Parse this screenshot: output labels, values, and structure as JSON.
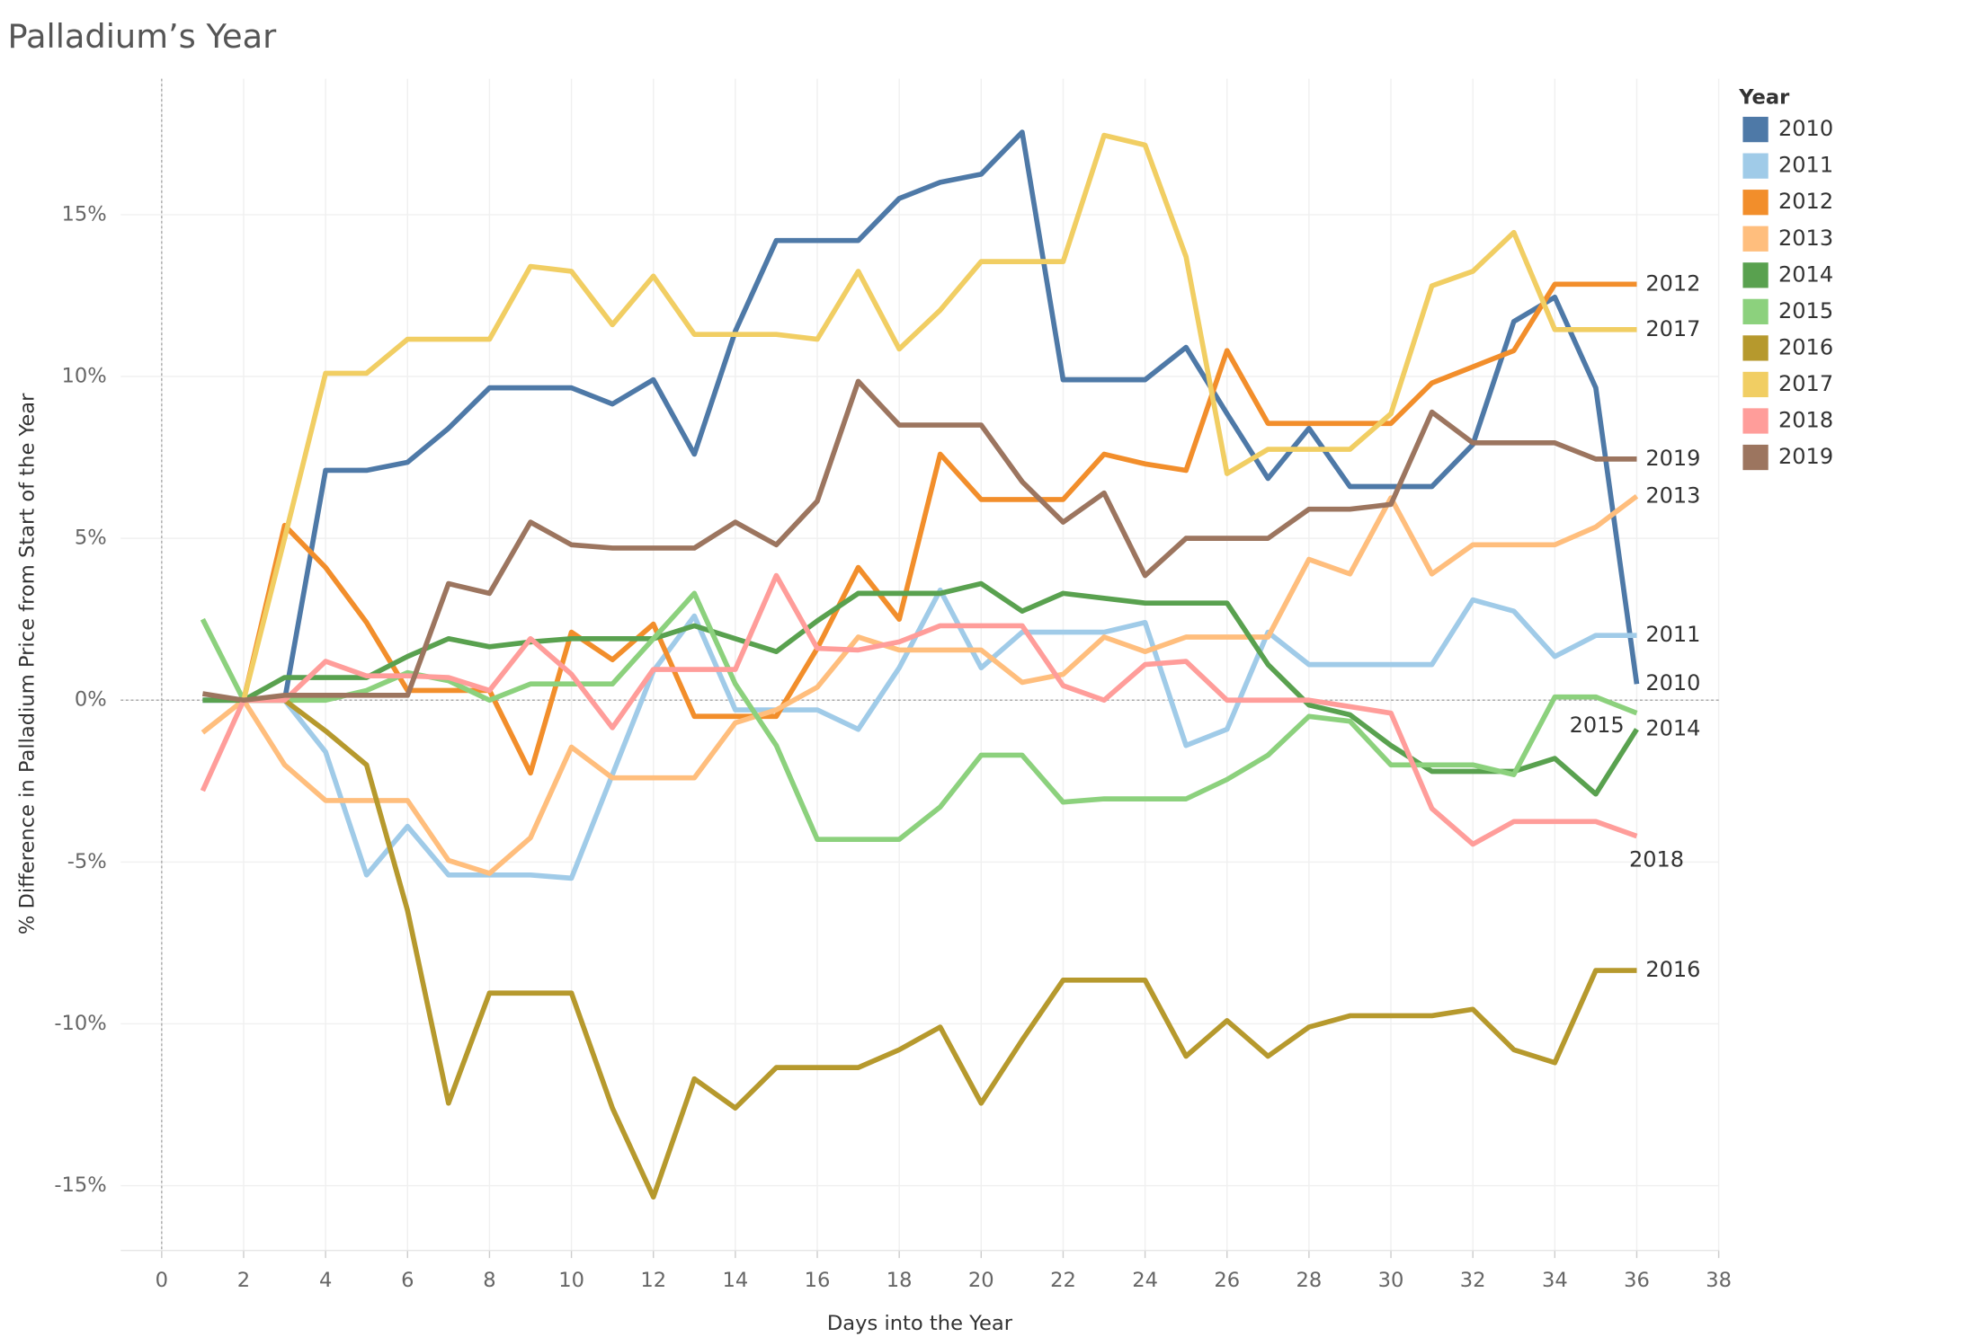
{
  "chart_data": {
    "type": "line",
    "title": "Palladium’s Year",
    "x_label": "Days into the Year",
    "y_label": "% Difference in Palladium Price from Start of the Year",
    "legend_title": "Year",
    "legend": "right",
    "grid": true,
    "x": [
      1,
      2,
      3,
      4,
      5,
      6,
      7,
      8,
      9,
      10,
      11,
      12,
      13,
      14,
      15,
      16,
      17,
      18,
      19,
      20,
      21,
      22,
      23,
      24,
      25,
      26,
      27,
      28,
      29,
      30,
      31,
      32,
      33,
      34,
      35,
      36
    ],
    "xlim": [
      -1,
      38
    ],
    "xticks": [
      0,
      2,
      4,
      6,
      8,
      10,
      12,
      14,
      16,
      18,
      20,
      22,
      24,
      26,
      28,
      30,
      32,
      34,
      36,
      38
    ],
    "ylim": [
      -17,
      19.2
    ],
    "yticks": [
      {
        "value": -15,
        "label": "-15%"
      },
      {
        "value": -10,
        "label": "-10%"
      },
      {
        "value": -5,
        "label": "-5%"
      },
      {
        "value": 0,
        "label": "0%"
      },
      {
        "value": 5,
        "label": "5%"
      },
      {
        "value": 10,
        "label": "10%"
      },
      {
        "value": 15,
        "label": "15%"
      }
    ],
    "series": [
      {
        "name": "2010",
        "color": "#4e79a7",
        "values": [
          0,
          0,
          0,
          7.1,
          7.1,
          7.35,
          8.4,
          9.65,
          9.65,
          9.65,
          9.15,
          9.9,
          7.6,
          11.4,
          14.2,
          14.2,
          14.2,
          15.5,
          16.0,
          16.25,
          17.55,
          9.9,
          9.9,
          9.9,
          10.9,
          8.85,
          6.85,
          8.4,
          6.6,
          6.6,
          6.6,
          7.9,
          11.7,
          12.45,
          9.65,
          0.5
        ]
      },
      {
        "name": "2011",
        "color": "#a0cbe8",
        "values": [
          0,
          0,
          0,
          -1.6,
          -5.4,
          -3.9,
          -5.4,
          -5.4,
          -5.4,
          -5.5,
          -2.3,
          0.9,
          2.6,
          -0.3,
          -0.3,
          -0.3,
          -0.9,
          1.0,
          3.4,
          1.0,
          2.1,
          2.1,
          2.1,
          2.4,
          -1.4,
          -0.9,
          2.1,
          1.1,
          1.1,
          1.1,
          1.1,
          3.1,
          2.75,
          1.35,
          2.0,
          2.0
        ]
      },
      {
        "name": "2012",
        "color": "#f28e2b",
        "values": [
          null,
          0,
          5.4,
          4.1,
          2.4,
          0.3,
          0.3,
          0.3,
          -2.25,
          2.1,
          1.25,
          2.35,
          -0.5,
          -0.5,
          -0.5,
          1.6,
          4.1,
          2.5,
          7.6,
          6.2,
          6.2,
          6.2,
          7.6,
          7.3,
          7.1,
          10.8,
          8.55,
          8.55,
          8.55,
          8.55,
          9.8,
          10.3,
          10.8,
          12.85,
          12.85,
          12.85
        ]
      },
      {
        "name": "2013",
        "color": "#ffbe7d",
        "values": [
          -1.0,
          0,
          -2.0,
          -3.1,
          -3.1,
          -3.1,
          -4.95,
          -5.35,
          -4.25,
          -1.45,
          -2.4,
          -2.4,
          -2.4,
          -0.7,
          -0.3,
          0.4,
          1.95,
          1.55,
          1.55,
          1.55,
          0.55,
          0.8,
          1.95,
          1.5,
          1.95,
          1.95,
          1.95,
          4.35,
          3.9,
          6.25,
          3.9,
          4.8,
          4.8,
          4.8,
          5.35,
          6.3
        ]
      },
      {
        "name": "2014",
        "color": "#59a14f",
        "values": [
          0,
          0,
          0.7,
          0.7,
          0.7,
          1.35,
          1.9,
          1.65,
          1.8,
          1.9,
          1.9,
          1.9,
          2.3,
          1.9,
          1.5,
          2.45,
          3.3,
          3.3,
          3.3,
          3.6,
          2.75,
          3.3,
          3.15,
          3.0,
          3.0,
          3.0,
          1.1,
          -0.15,
          -0.45,
          -1.4,
          -2.2,
          -2.2,
          -2.2,
          -1.8,
          -2.9,
          -0.9
        ]
      },
      {
        "name": "2015",
        "color": "#8cd17d",
        "values": [
          2.5,
          0,
          0,
          0,
          0.3,
          0.85,
          0.6,
          0,
          0.5,
          0.5,
          0.5,
          1.9,
          3.3,
          0.5,
          -1.4,
          -4.3,
          -4.3,
          -4.3,
          -3.3,
          -1.7,
          -1.7,
          -3.15,
          -3.05,
          -3.05,
          -3.05,
          -2.45,
          -1.7,
          -0.5,
          -0.65,
          -2.0,
          -2.0,
          -2.0,
          -2.3,
          0.1,
          0.1,
          -0.4
        ]
      },
      {
        "name": "2016",
        "color": "#b6992d",
        "values": [
          null,
          0,
          0,
          -0.95,
          -2.0,
          -6.5,
          -12.45,
          -9.05,
          -9.05,
          -9.05,
          -12.6,
          -15.35,
          -11.7,
          -12.6,
          -11.35,
          -11.35,
          -11.35,
          -10.8,
          -10.1,
          -12.45,
          -10.5,
          -8.65,
          -8.65,
          -8.65,
          -11.0,
          -9.9,
          -11.0,
          -10.1,
          -9.75,
          -9.75,
          -9.75,
          -9.55,
          -10.8,
          -11.2,
          -8.35,
          -8.35
        ]
      },
      {
        "name": "2017",
        "color": "#f1ce63",
        "values": [
          null,
          0,
          5.0,
          10.1,
          10.1,
          11.15,
          11.15,
          11.15,
          13.4,
          13.25,
          11.6,
          13.1,
          11.3,
          11.3,
          11.3,
          11.15,
          13.25,
          10.85,
          12.05,
          13.55,
          13.55,
          13.55,
          17.45,
          17.15,
          13.7,
          7.0,
          7.75,
          7.75,
          7.75,
          8.85,
          12.8,
          13.25,
          14.45,
          11.45,
          11.45,
          11.45
        ]
      },
      {
        "name": "2018",
        "color": "#ff9d9a",
        "values": [
          -2.8,
          0,
          0,
          1.2,
          0.75,
          0.75,
          0.7,
          0.3,
          1.9,
          0.8,
          -0.85,
          0.95,
          0.95,
          0.95,
          3.85,
          1.6,
          1.55,
          1.8,
          2.3,
          2.3,
          2.3,
          0.45,
          0,
          1.1,
          1.2,
          0,
          0,
          0,
          -0.2,
          -0.4,
          -3.35,
          -4.45,
          -3.75,
          -3.75,
          -3.75,
          -4.2
        ]
      },
      {
        "name": "2019",
        "color": "#9c755f",
        "values": [
          0.2,
          0,
          0.15,
          0.15,
          0.15,
          0.15,
          3.6,
          3.3,
          5.5,
          4.8,
          4.7,
          4.7,
          4.7,
          5.5,
          4.8,
          6.15,
          9.85,
          8.5,
          8.5,
          8.5,
          6.75,
          5.5,
          6.4,
          3.85,
          5.0,
          5.0,
          5.0,
          5.9,
          5.9,
          6.05,
          8.9,
          7.95,
          7.95,
          7.95,
          7.45,
          7.45
        ]
      }
    ]
  }
}
